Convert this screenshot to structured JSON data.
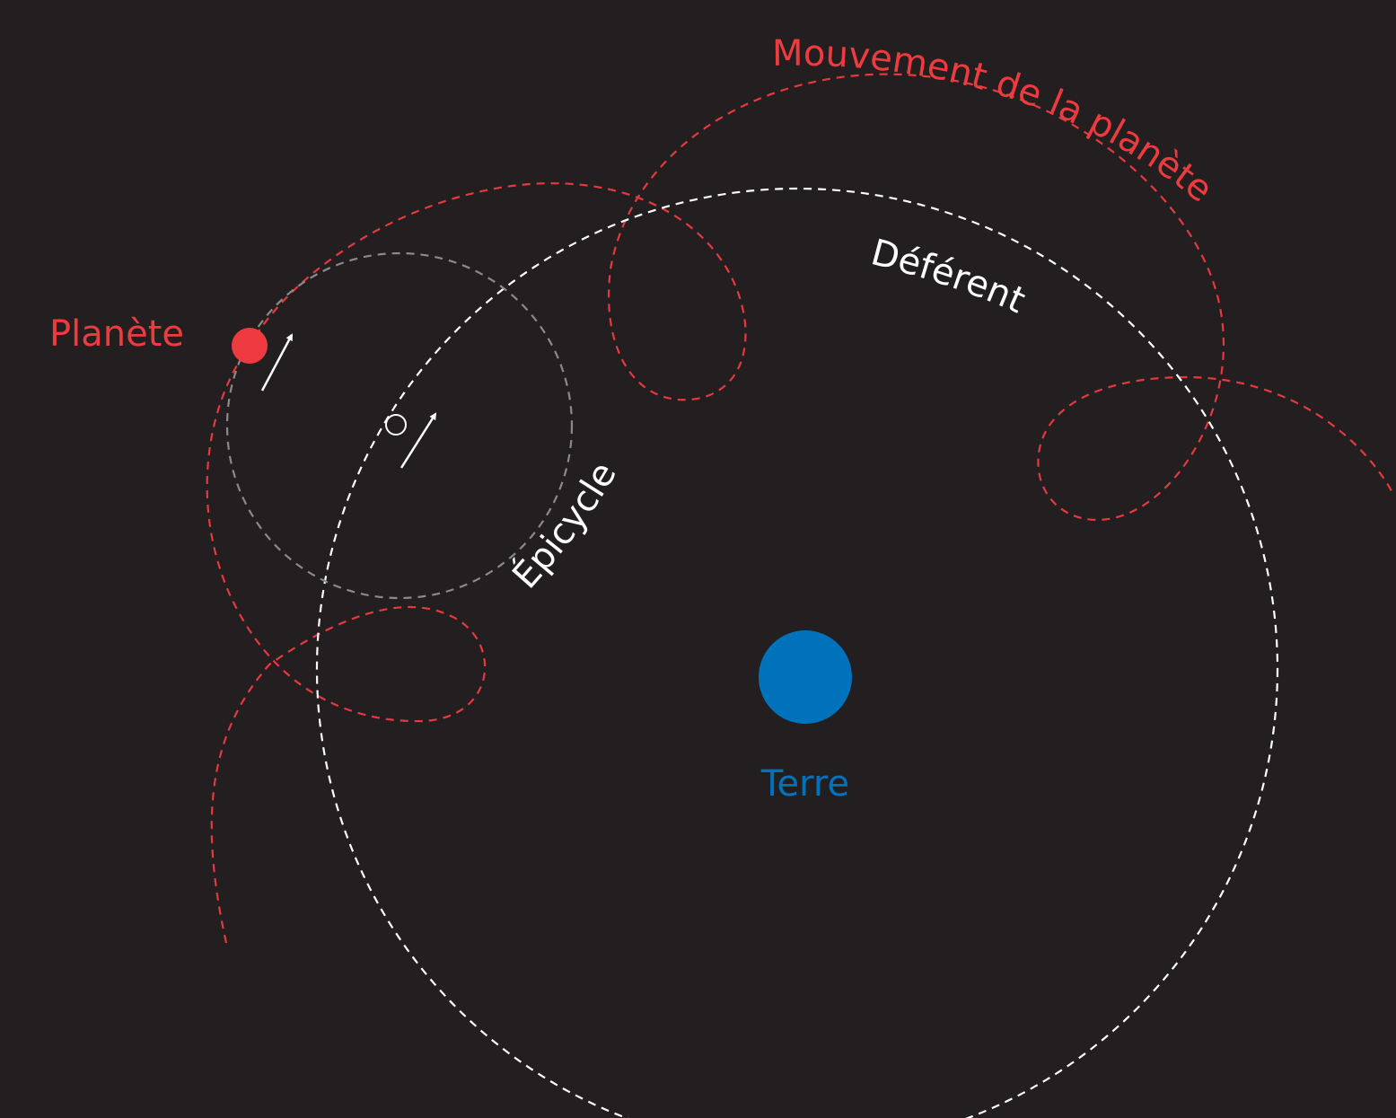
{
  "labels": {
    "planet": "Planète",
    "earth": "Terre",
    "deferent": "Déférent",
    "epicycle": "Épicycle",
    "planet_motion": "Mouvement de la planète"
  },
  "colors": {
    "background": "#231f20",
    "planet": "#ef3b3f",
    "earth": "#0072bc",
    "deferent": "#ffffff",
    "epicycle": "#8a8a8a",
    "motion_path": "#e5393d"
  },
  "icons": {
    "planet": "red-filled-circle",
    "earth": "blue-filled-circle",
    "epicycle_center": "small-hollow-circle",
    "direction": "white-arrow"
  }
}
